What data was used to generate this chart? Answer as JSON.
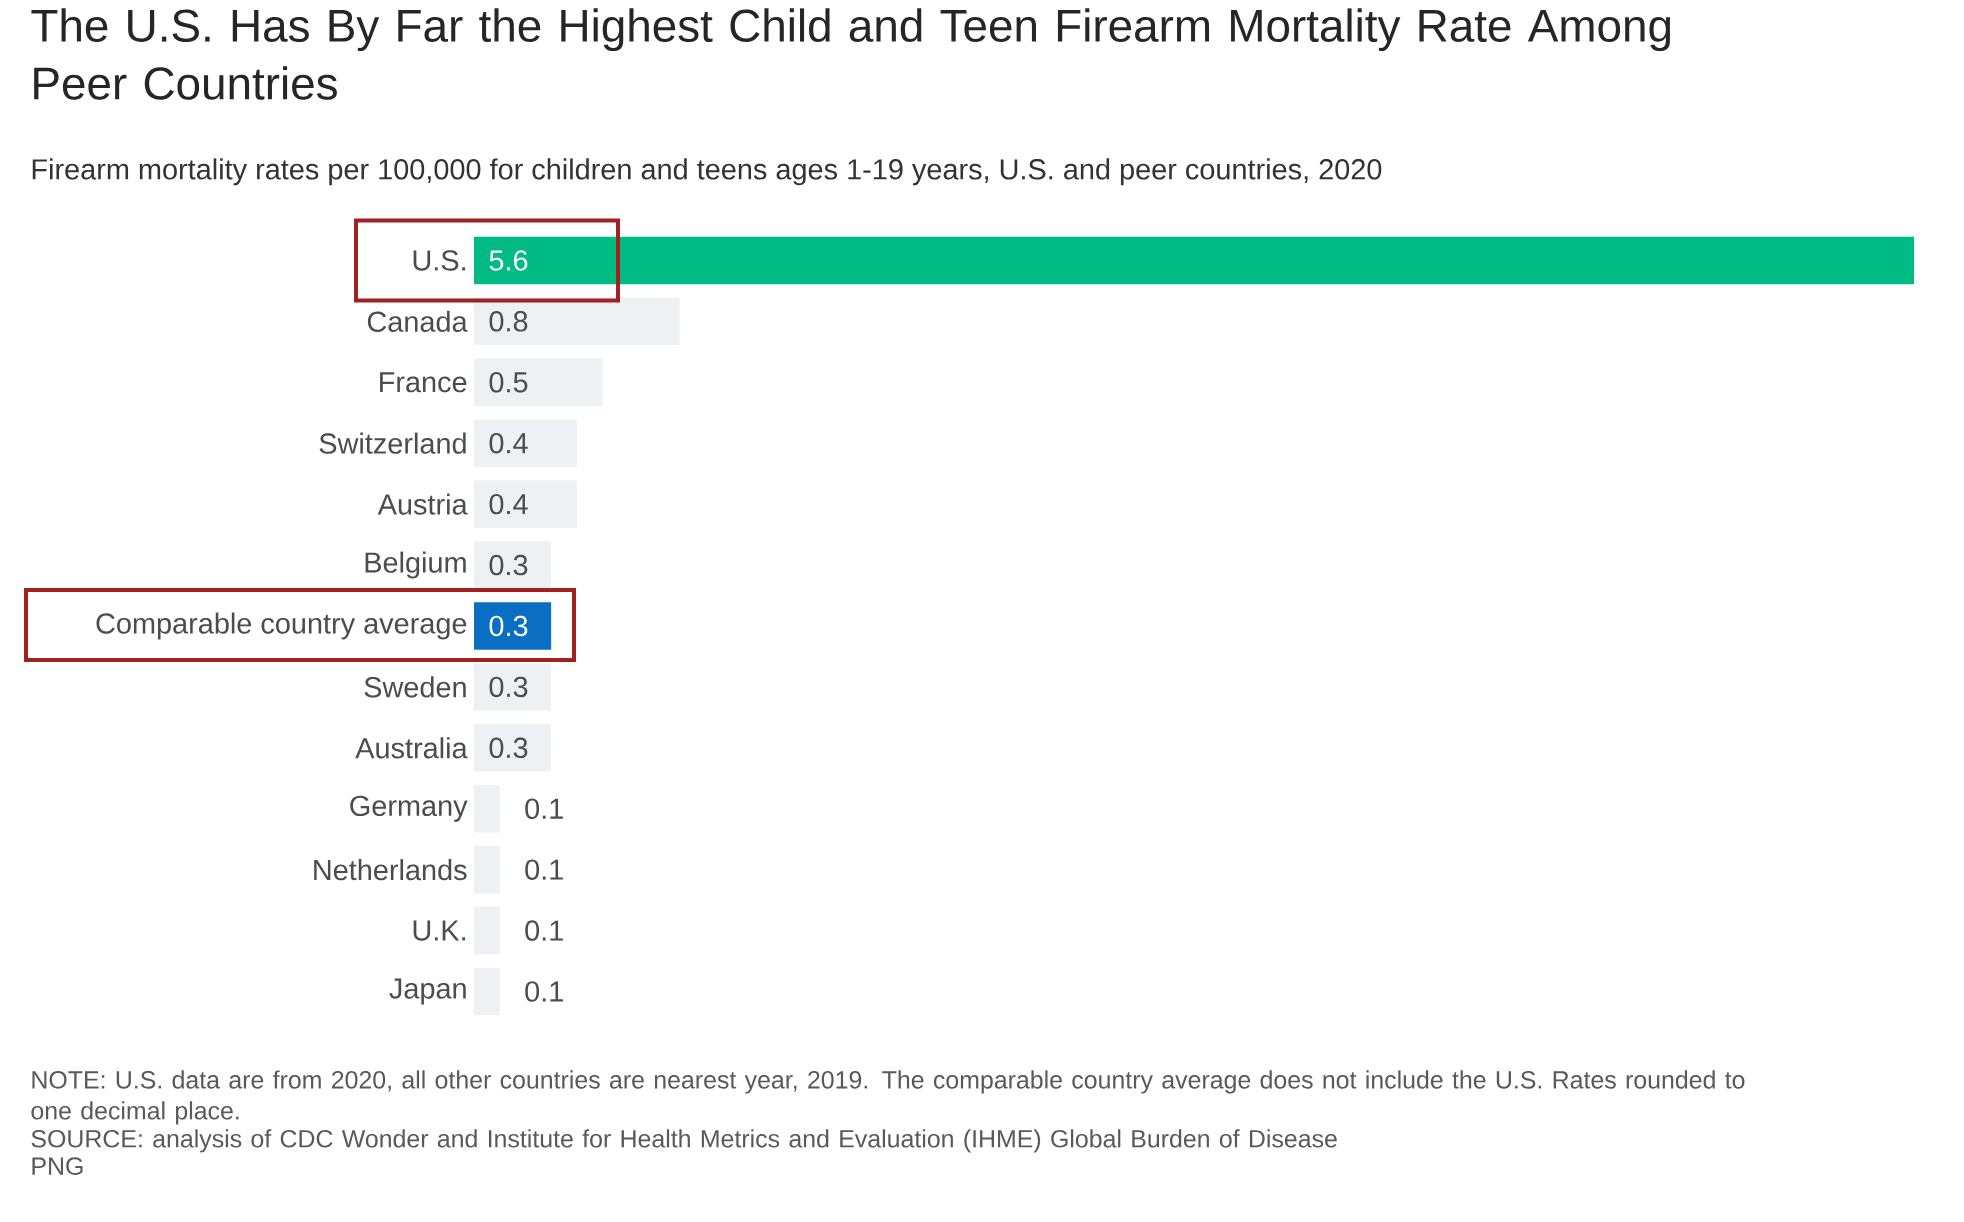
{
  "chart_data": {
    "type": "bar",
    "orientation": "horizontal",
    "title": "The U.S. Has By Far the Highest Child and Teen Firearm Mortality Rate Among Peer Countries",
    "subtitle": "Firearm mortality rates per 100,000 for children and teens ages 1-19 years, U.S. and peer countries, 2020",
    "categories": [
      "U.S.",
      "Canada",
      "France",
      "Switzerland",
      "Austria",
      "Belgium",
      "Comparable country average",
      "Sweden",
      "Australia",
      "Germany",
      "Netherlands",
      "U.K.",
      "Japan"
    ],
    "values": [
      5.6,
      0.8,
      0.5,
      0.4,
      0.4,
      0.3,
      0.3,
      0.3,
      0.3,
      0.1,
      0.1,
      0.1,
      0.1
    ],
    "colors": [
      "#00bb84",
      "#eef1f4",
      "#eef1f4",
      "#eef1f4",
      "#eef1f4",
      "#eef1f4",
      "#0a6fc2",
      "#eef1f4",
      "#eef1f4",
      "#eef1f4",
      "#eef1f4",
      "#eef1f4",
      "#eef1f4"
    ],
    "data_labels": true,
    "tick_labels": "y",
    "annotations": [
      "NOTE: U.S. data are from 2020, all other countries are nearest year, 2019. The comparable country average does not include the U.S. Rates rounded to one decimal place.",
      "SOURCE: analysis of CDC Wonder and Institute for Health Metrics and Evaluation (IHME) Global Burden of Disease",
      "PNG"
    ]
  }
}
